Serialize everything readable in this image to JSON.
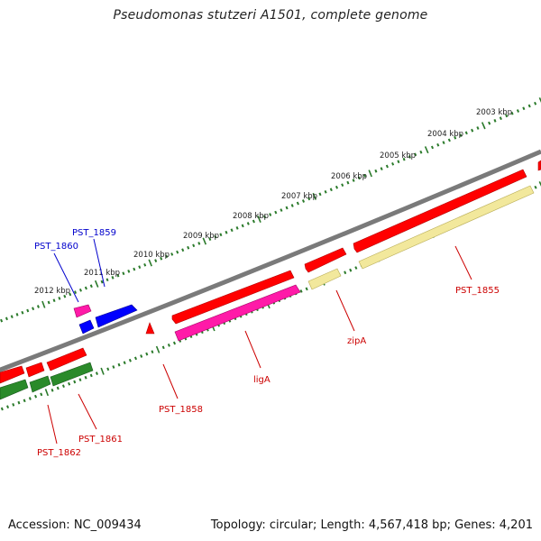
{
  "title": "Pseudomonas stutzeri A1501, complete genome",
  "accession": "Accession: NC_009434",
  "summary": "Topology: circular; Length: 4,567,418 bp; Genes: 4,201",
  "colors": {
    "backbone": "#7a7a7a",
    "ticks": "#2a7a2a",
    "cds_red": "#ff0000",
    "cds_magenta": "#ff1aa8",
    "cds_blue": "#0000ff",
    "cds_green": "#2a8a2a",
    "cds_yellow": "#f2e89c",
    "label_red": "#cc0000",
    "label_blue": "#0000cc"
  },
  "kbp_labels": [
    "2003 kbp",
    "2004 kbp",
    "2005 kbp",
    "2006 kbp",
    "2007 kbp",
    "2008 kbp",
    "2009 kbp",
    "2010 kbp",
    "2011 kbp",
    "2012 kbp"
  ],
  "gene_labels": {
    "pst_1855": "PST_1855",
    "zipa": "zipA",
    "liga": "ligA",
    "pst_1858": "PST_1858",
    "pst_1859": "PST_1859",
    "pst_1860": "PST_1860",
    "pst_1861": "PST_1861",
    "pst_1862": "PST_1862"
  }
}
